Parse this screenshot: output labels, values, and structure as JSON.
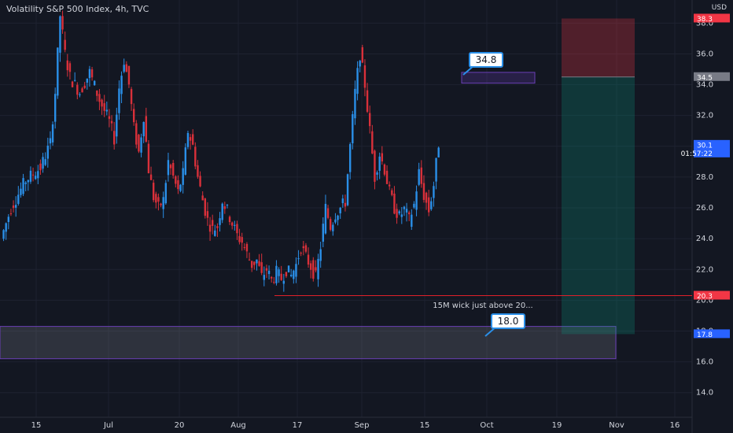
{
  "header": {
    "title": "Volatility S&P 500 Index, 4h, TVC",
    "currency": "USD"
  },
  "chart_data": {
    "type": "candlestick",
    "y_ticks": [
      "14.0",
      "16.0",
      "18.0",
      "20.0",
      "22.0",
      "24.0",
      "26.0",
      "28.0",
      "30.0",
      "32.0",
      "34.0",
      "36.0",
      "38.0"
    ],
    "y_range": [
      12.4,
      39.5
    ],
    "x_tick_labels": [
      "15",
      "Jul",
      "20",
      "Aug",
      "17",
      "Sep",
      "15",
      "Oct",
      "19",
      "Nov",
      "16"
    ],
    "price_labels": [
      {
        "text": "38.3",
        "value": 38.3,
        "color": "#f23645"
      },
      {
        "text": "34.5",
        "value": 34.5,
        "color": "#787b86"
      },
      {
        "text": "30.1",
        "value": 30.1,
        "color": "#2962ff",
        "sub": "01:57:22"
      },
      {
        "text": "20.3",
        "value": 20.3,
        "color": "#f23645"
      },
      {
        "text": "17.8",
        "value": 17.8,
        "color": "#2962ff"
      }
    ],
    "annotations": [
      {
        "text": "34.8"
      },
      {
        "text": "18.0"
      },
      {
        "text": "15M wick just above 20..."
      }
    ],
    "key_levels": {
      "support_line": 20.3,
      "upper_box_top": 34.8,
      "upper_box_bottom": 34.1,
      "lower_zone_top": 18.3,
      "lower_zone_bottom": 16.2,
      "risk_top": 38.3,
      "entry": 34.5,
      "target": 17.8
    },
    "price_path": [
      [
        0,
        24.0
      ],
      [
        2,
        26.0
      ],
      [
        5,
        27.8
      ],
      [
        8,
        28.6
      ],
      [
        10,
        30.2
      ],
      [
        11,
        33.5
      ],
      [
        12,
        38.5
      ],
      [
        13,
        36.0
      ],
      [
        14,
        34.5
      ],
      [
        16,
        33.5
      ],
      [
        18,
        34.8
      ],
      [
        20,
        33.0
      ],
      [
        22,
        31.6
      ],
      [
        23,
        30.5
      ],
      [
        24,
        33.8
      ],
      [
        25,
        35.6
      ],
      [
        26,
        34.0
      ],
      [
        27,
        31.2
      ],
      [
        28,
        29.6
      ],
      [
        29,
        32.0
      ],
      [
        30,
        28.5
      ],
      [
        31,
        26.7
      ],
      [
        32,
        26.0
      ],
      [
        33,
        26.5
      ],
      [
        34,
        29.0
      ],
      [
        36,
        27.0
      ],
      [
        37,
        28.2
      ],
      [
        38,
        31.0
      ],
      [
        39,
        30.0
      ],
      [
        40,
        28.0
      ],
      [
        41,
        26.5
      ],
      [
        42,
        25.2
      ],
      [
        43,
        24.6
      ],
      [
        44,
        24.8
      ],
      [
        45,
        26.5
      ],
      [
        46,
        25.8
      ],
      [
        47,
        25.0
      ],
      [
        48,
        24.2
      ],
      [
        49,
        23.8
      ],
      [
        50,
        23.0
      ],
      [
        51,
        22.3
      ],
      [
        52,
        22.6
      ],
      [
        53,
        21.5
      ],
      [
        54,
        22.0
      ],
      [
        55,
        21.3
      ],
      [
        56,
        21.8
      ],
      [
        57,
        21.4
      ],
      [
        58,
        22.0
      ],
      [
        59,
        21.6
      ],
      [
        60,
        22.3
      ],
      [
        61,
        23.5
      ],
      [
        62,
        22.8
      ],
      [
        63,
        22.2
      ],
      [
        64,
        21.5
      ],
      [
        65,
        23.5
      ],
      [
        66,
        26.0
      ],
      [
        67,
        24.8
      ],
      [
        68,
        25.6
      ],
      [
        69,
        26.0
      ],
      [
        70,
        26.4
      ],
      [
        71,
        30.0
      ],
      [
        72,
        33.5
      ],
      [
        73,
        36.0
      ],
      [
        74,
        34.0
      ],
      [
        75,
        31.0
      ],
      [
        76,
        28.0
      ],
      [
        77,
        29.5
      ],
      [
        78,
        28.5
      ],
      [
        79,
        27.0
      ],
      [
        80,
        26.0
      ],
      [
        81,
        25.4
      ],
      [
        82,
        25.9
      ],
      [
        83,
        25.2
      ],
      [
        84,
        26.2
      ],
      [
        85,
        28.3
      ],
      [
        86,
        26.8
      ],
      [
        87,
        25.8
      ],
      [
        88,
        27.5
      ],
      [
        89,
        30.2
      ]
    ]
  }
}
